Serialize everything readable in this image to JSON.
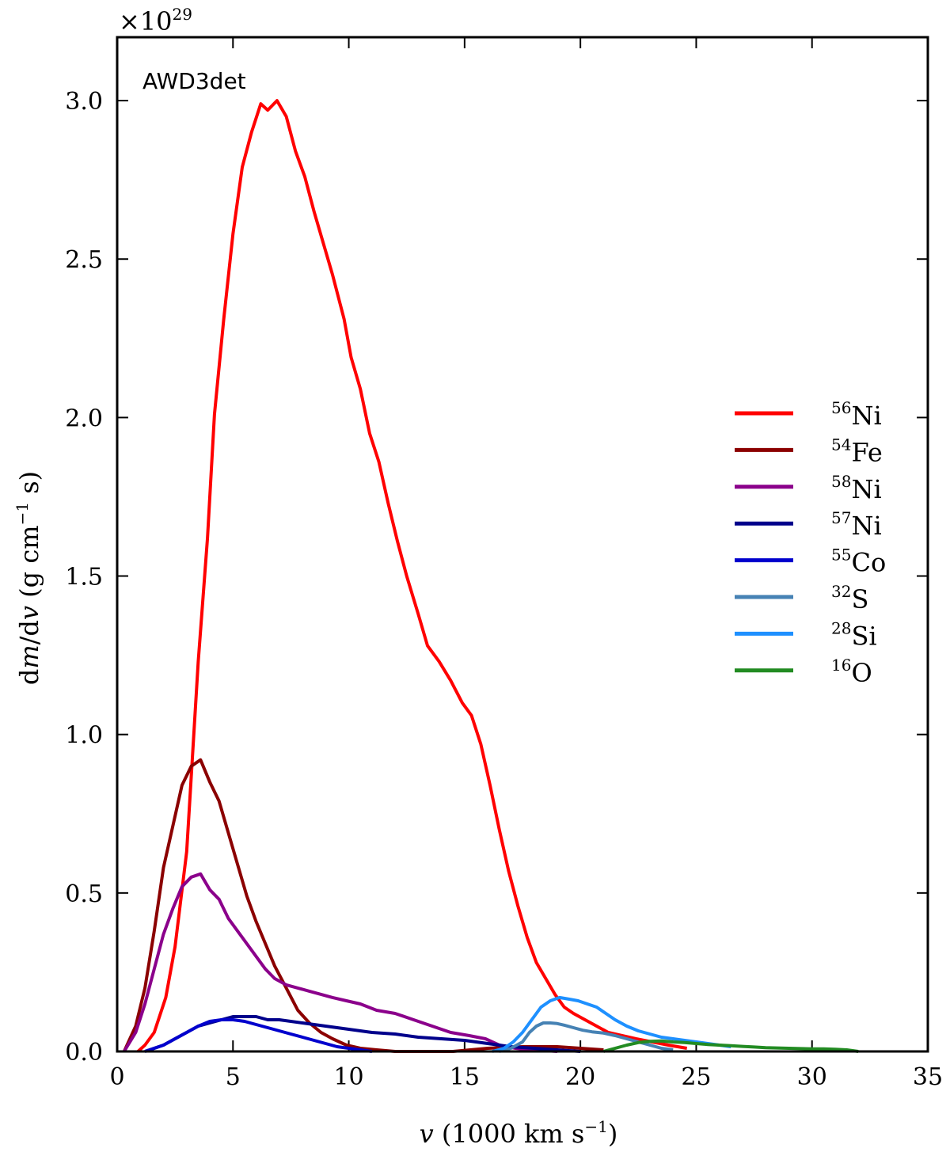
{
  "chart_data": {
    "type": "line",
    "title": "",
    "annotation": "AWD3det",
    "xlabel": {
      "italic": "v",
      "text": " (1000 km s",
      "sup": "−1",
      "end": ")"
    },
    "ylabel": {
      "prefix": "d",
      "italic_m": "m",
      "slash": "/d",
      "italic_v": "v",
      "text": " (g cm",
      "sup": "−1",
      "end": " s)"
    },
    "offset_text": {
      "base": "×10",
      "exp": "29"
    },
    "xlim": [
      0,
      35
    ],
    "ylim": [
      0,
      3.2
    ],
    "xticks": [
      0,
      5,
      10,
      15,
      20,
      25,
      30,
      35
    ],
    "xtick_labels": [
      "0",
      "5",
      "10",
      "15",
      "20",
      "25",
      "30",
      "35"
    ],
    "yticks": [
      0,
      0.5,
      1.0,
      1.5,
      2.0,
      2.5,
      3.0
    ],
    "ytick_labels": [
      "0.0",
      "0.5",
      "1.0",
      "1.5",
      "2.0",
      "2.5",
      "3.0"
    ],
    "grid": false,
    "legend_position": "center-right",
    "series": [
      {
        "name": "Ni",
        "mass": "56",
        "color": "#ff0000",
        "x": [
          0.9,
          1.2,
          1.6,
          2.1,
          2.5,
          3.0,
          3.5,
          3.9,
          4.2,
          4.6,
          5.0,
          5.4,
          5.8,
          6.2,
          6.5,
          6.9,
          7.3,
          7.7,
          8.1,
          8.5,
          8.9,
          9.3,
          9.8,
          10.1,
          10.5,
          10.9,
          11.3,
          11.7,
          12.1,
          12.5,
          13.0,
          13.4,
          13.9,
          14.4,
          14.9,
          15.3,
          15.7,
          16.1,
          16.5,
          16.9,
          17.3,
          17.7,
          18.1,
          18.5,
          18.9,
          19.3,
          19.7,
          20.2,
          20.7,
          21.2,
          21.8,
          22.4,
          23.1,
          23.8,
          24.6
        ],
        "y": [
          0,
          0.02,
          0.06,
          0.17,
          0.33,
          0.63,
          1.23,
          1.62,
          2.01,
          2.31,
          2.58,
          2.79,
          2.9,
          2.99,
          2.97,
          3.0,
          2.95,
          2.84,
          2.76,
          2.65,
          2.55,
          2.45,
          2.31,
          2.19,
          2.09,
          1.95,
          1.86,
          1.73,
          1.61,
          1.5,
          1.38,
          1.28,
          1.23,
          1.17,
          1.1,
          1.06,
          0.97,
          0.84,
          0.7,
          0.57,
          0.46,
          0.36,
          0.28,
          0.23,
          0.18,
          0.14,
          0.12,
          0.1,
          0.08,
          0.06,
          0.05,
          0.04,
          0.03,
          0.02,
          0.01
        ]
      },
      {
        "name": "Fe",
        "mass": "54",
        "color": "#8b0000",
        "x": [
          0.3,
          0.8,
          1.2,
          1.6,
          2.0,
          2.4,
          2.8,
          3.2,
          3.6,
          4.0,
          4.4,
          4.8,
          5.2,
          5.6,
          6.0,
          6.4,
          6.8,
          7.3,
          7.8,
          8.3,
          8.8,
          9.3,
          9.9,
          10.5,
          11.2,
          12.0,
          13.0,
          14.5,
          16.0,
          17.5,
          19.0,
          20.0,
          21.0
        ],
        "y": [
          0,
          0.08,
          0.2,
          0.38,
          0.58,
          0.71,
          0.84,
          0.9,
          0.92,
          0.85,
          0.79,
          0.69,
          0.59,
          0.49,
          0.41,
          0.34,
          0.27,
          0.2,
          0.13,
          0.09,
          0.06,
          0.04,
          0.02,
          0.01,
          0.005,
          0.0,
          0.0,
          0.0,
          0.01,
          0.015,
          0.015,
          0.01,
          0.005
        ]
      },
      {
        "name": "Ni",
        "mass": "58",
        "color": "#8b008b",
        "x": [
          0.3,
          0.8,
          1.2,
          1.6,
          2.0,
          2.4,
          2.8,
          3.2,
          3.6,
          4.0,
          4.4,
          4.8,
          5.2,
          5.6,
          6.0,
          6.4,
          6.8,
          7.3,
          7.8,
          8.3,
          8.8,
          9.3,
          9.9,
          10.5,
          11.2,
          12.0,
          12.8,
          13.6,
          14.4,
          15.2,
          15.9,
          16.5,
          17.2,
          18.0,
          19.0
        ],
        "y": [
          0,
          0.06,
          0.15,
          0.26,
          0.37,
          0.45,
          0.52,
          0.55,
          0.56,
          0.51,
          0.48,
          0.42,
          0.38,
          0.34,
          0.3,
          0.26,
          0.23,
          0.21,
          0.2,
          0.19,
          0.18,
          0.17,
          0.16,
          0.15,
          0.13,
          0.12,
          0.1,
          0.08,
          0.06,
          0.05,
          0.04,
          0.02,
          0.01,
          0.005,
          0.0
        ]
      },
      {
        "name": "Ni",
        "mass": "57",
        "color": "#00008b",
        "x": [
          1.2,
          1.6,
          2.0,
          2.5,
          3.0,
          3.5,
          4.0,
          4.5,
          5.0,
          5.5,
          6.0,
          6.5,
          7.0,
          8.0,
          9.0,
          10.0,
          11.0,
          12.0,
          13.0,
          14.0,
          15.0,
          15.5,
          16.0,
          16.5,
          17.0,
          18.0,
          19.0,
          20.0
        ],
        "y": [
          0,
          0.01,
          0.02,
          0.04,
          0.06,
          0.08,
          0.09,
          0.1,
          0.11,
          0.11,
          0.11,
          0.1,
          0.1,
          0.09,
          0.08,
          0.07,
          0.06,
          0.055,
          0.045,
          0.04,
          0.035,
          0.03,
          0.025,
          0.02,
          0.015,
          0.01,
          0.005,
          0.0
        ]
      },
      {
        "name": "Co",
        "mass": "55",
        "color": "#0000cd",
        "x": [
          1.2,
          1.6,
          2.0,
          2.5,
          3.0,
          3.5,
          4.0,
          4.5,
          5.0,
          5.5,
          6.0,
          6.5,
          7.0,
          7.5,
          8.0,
          8.5,
          9.0,
          9.5,
          10.0,
          10.5,
          11.0
        ],
        "y": [
          0,
          0.01,
          0.02,
          0.04,
          0.06,
          0.08,
          0.095,
          0.1,
          0.1,
          0.095,
          0.085,
          0.075,
          0.065,
          0.055,
          0.045,
          0.035,
          0.025,
          0.015,
          0.01,
          0.005,
          0.0
        ]
      },
      {
        "name": "S",
        "mass": "32",
        "color": "#4682b4",
        "x": [
          16.5,
          17.0,
          17.5,
          17.8,
          18.1,
          18.4,
          18.7,
          19.0,
          19.3,
          19.7,
          20.1,
          20.5,
          21.0,
          21.5,
          22.0,
          22.5,
          23.0,
          23.5,
          24.0
        ],
        "y": [
          0,
          0.01,
          0.03,
          0.06,
          0.08,
          0.09,
          0.09,
          0.088,
          0.083,
          0.075,
          0.067,
          0.062,
          0.058,
          0.05,
          0.04,
          0.03,
          0.02,
          0.01,
          0.005
        ]
      },
      {
        "name": "Si",
        "mass": "28",
        "color": "#1e90ff",
        "x": [
          16.2,
          16.7,
          17.1,
          17.5,
          17.9,
          18.3,
          18.7,
          19.1,
          19.5,
          19.9,
          20.3,
          20.7,
          21.1,
          21.5,
          22.0,
          22.5,
          23.0,
          23.5,
          24.0,
          24.5,
          25.0,
          25.5,
          26.0,
          26.5
        ],
        "y": [
          0,
          0.01,
          0.03,
          0.06,
          0.1,
          0.14,
          0.16,
          0.17,
          0.165,
          0.16,
          0.15,
          0.14,
          0.12,
          0.1,
          0.08,
          0.065,
          0.055,
          0.045,
          0.04,
          0.035,
          0.03,
          0.025,
          0.02,
          0.015
        ]
      },
      {
        "name": "O",
        "mass": "16",
        "color": "#228b22",
        "x": [
          21.0,
          21.5,
          22.0,
          22.5,
          23.0,
          23.5,
          24.0,
          24.5,
          25.0,
          25.5,
          26.0,
          26.5,
          27.0,
          27.5,
          28.0,
          28.5,
          29.0,
          29.5,
          30.0,
          30.5,
          31.0,
          31.5,
          32.0
        ],
        "y": [
          0,
          0.01,
          0.02,
          0.028,
          0.032,
          0.033,
          0.03,
          0.028,
          0.025,
          0.022,
          0.02,
          0.018,
          0.016,
          0.014,
          0.012,
          0.011,
          0.01,
          0.009,
          0.008,
          0.008,
          0.007,
          0.005,
          0.0
        ]
      }
    ]
  }
}
